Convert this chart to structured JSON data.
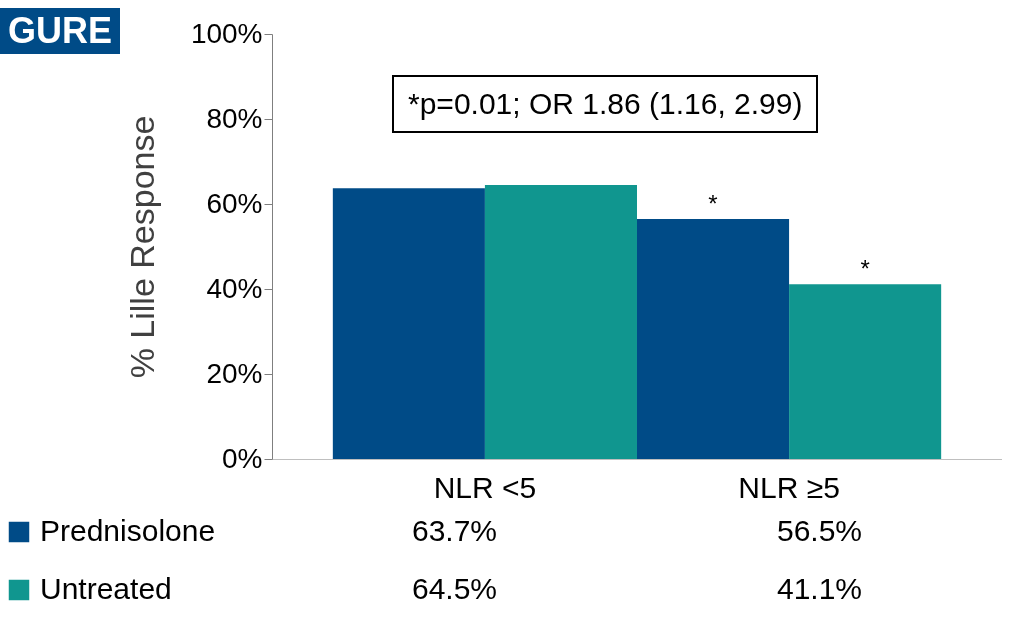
{
  "chart_data": {
    "type": "bar",
    "ylabel": "% Lille Response",
    "categories": [
      "NLR <5",
      "NLR ≥5"
    ],
    "series": [
      {
        "name": "Prednisolone",
        "color": "#004b87",
        "values": [
          63.7,
          56.5
        ],
        "value_labels": [
          "63.7%",
          "56.5%"
        ]
      },
      {
        "name": "Untreated",
        "color": "#10968f",
        "values": [
          64.5,
          41.1
        ],
        "value_labels": [
          "64.5%",
          "41.1%"
        ]
      }
    ],
    "ylim": [
      0,
      100
    ],
    "yticks": [
      {
        "value": 0,
        "label": "0%"
      },
      {
        "value": 20,
        "label": "20%"
      },
      {
        "value": 40,
        "label": "40%"
      },
      {
        "value": 60,
        "label": "60%"
      },
      {
        "value": 80,
        "label": "80%"
      },
      {
        "value": 100,
        "label": "100%"
      }
    ],
    "grid": false,
    "legend": "bottom left",
    "annotations": [
      "GURE",
      "*p=0.01; OR 1.86 (1.16, 2.99)",
      {
        "text": "*",
        "x": "NLR ≥5",
        "y": 56.5
      },
      {
        "text": "*",
        "x": "NLR ≥5",
        "y": 41.1
      }
    ]
  }
}
